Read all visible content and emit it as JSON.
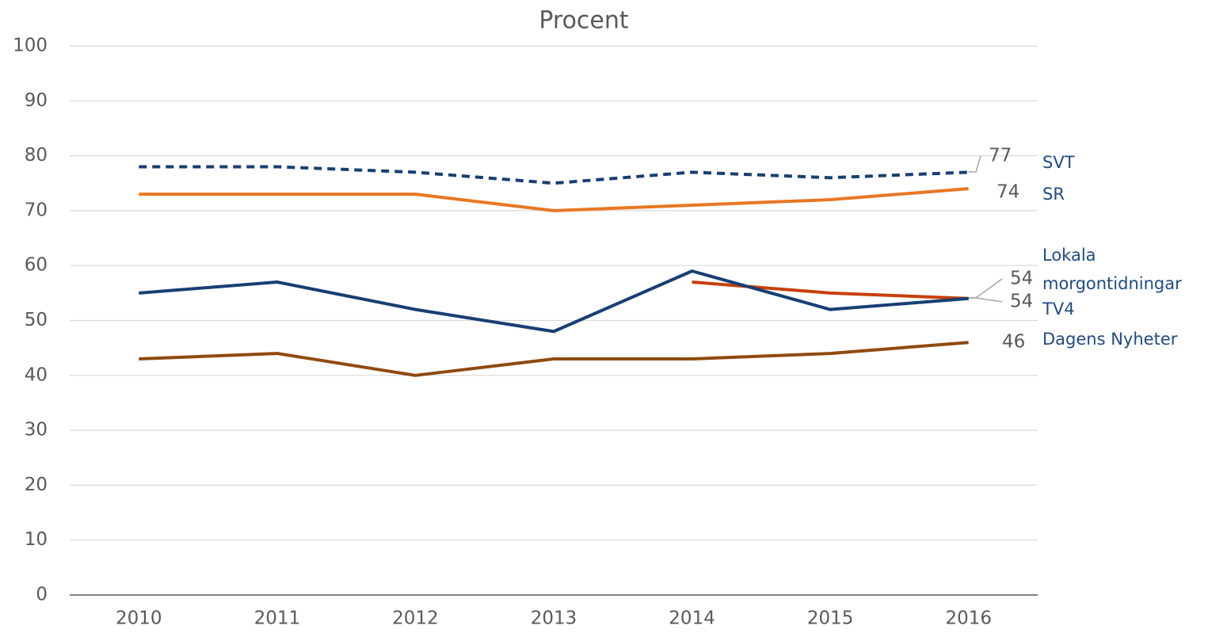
{
  "chart_data": {
    "type": "line",
    "title": "Procent",
    "categories": [
      "2010",
      "2011",
      "2012",
      "2013",
      "2014",
      "2015",
      "2016"
    ],
    "ylim": [
      0,
      100
    ],
    "yticks": [
      0,
      10,
      20,
      30,
      40,
      50,
      60,
      70,
      80,
      90,
      100
    ],
    "grid": true,
    "series": [
      {
        "name": "SVT",
        "color": "#173f73",
        "dashed": true,
        "values": [
          78,
          78,
          77,
          75,
          77,
          76,
          77
        ]
      },
      {
        "name": "SR",
        "color": "#e87722",
        "values": [
          73,
          73,
          73,
          70,
          71,
          72,
          74
        ]
      },
      {
        "name": "Lokala morgontidningar",
        "color": "#c8400a",
        "values": [
          null,
          null,
          null,
          null,
          57,
          55,
          54
        ]
      },
      {
        "name": "TV4",
        "color": "#173f73",
        "values": [
          55,
          57,
          52,
          48,
          59,
          52,
          54
        ]
      },
      {
        "name": "Dagens Nyheter",
        "color": "#8f4a0f",
        "values": [
          43,
          44,
          40,
          43,
          43,
          44,
          46
        ]
      }
    ]
  }
}
